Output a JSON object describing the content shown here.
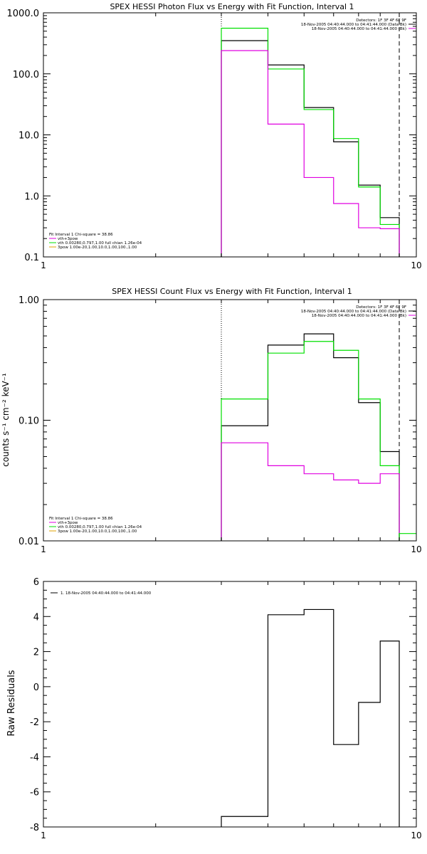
{
  "chart_data": [
    {
      "type": "line",
      "title": "SPEX HESSI Photon Flux vs Energy with Fit Function, Interval 1",
      "xlabel": "",
      "ylabel": "",
      "xscale": "log",
      "yscale": "log",
      "xlim": [
        1,
        10
      ],
      "ylim": [
        0.1,
        1000
      ],
      "x_tick_labels": [
        "1",
        "10"
      ],
      "y_tick_labels": [
        "0.1",
        "1.0",
        "10.0",
        "100.0",
        "1000.0"
      ],
      "vlines": [
        {
          "x": 3.0,
          "style": "dotted"
        },
        {
          "x": 9.0,
          "style": "dashed"
        }
      ],
      "bin_edges": [
        3.0,
        4.0,
        5.0,
        6.0,
        7.0,
        8.0,
        9.0
      ],
      "series": [
        {
          "color": "#000000",
          "values": [
            350,
            140,
            28,
            7.7,
            1.5,
            0.44
          ]
        },
        {
          "color": "#00e000",
          "values": [
            560,
            120,
            26,
            8.7,
            1.4,
            0.34
          ]
        },
        {
          "color": "#e000e0",
          "values": [
            240,
            15,
            2.0,
            0.75,
            0.3,
            0.29
          ]
        }
      ],
      "legend_topright": [
        {
          "text": "Detectors: 1F 3F 4F 6F 9F",
          "color": ""
        },
        {
          "text": "18-Nov-2005 04:40:44.000 to 04:41:44.000 (Data-Bk)",
          "color": "#000000"
        },
        {
          "text": "18-Nov-2005 04:40:44.000 to 04:41:44.000 (Bk)",
          "color": "#e000e0"
        }
      ],
      "legend_bottomleft": [
        {
          "text": "Fit Interval 1    Chi-square = 38.86",
          "color": ""
        },
        {
          "text": "vth+3pow",
          "color": "#e000e0"
        },
        {
          "text": "vth 0.00280,0.797,1.00   full chian 1.26e-04",
          "color": "#00e000"
        },
        {
          "text": "3pow 1.00e-20,1.00,10.0,1.00,100.,1.00",
          "color": "#e0a000"
        }
      ]
    },
    {
      "type": "line",
      "title": "SPEX HESSI Count Flux vs Energy with Fit Function, Interval 1",
      "xlabel": "",
      "ylabel": "counts s⁻¹ cm⁻² keV⁻¹",
      "xscale": "log",
      "yscale": "log",
      "xlim": [
        1,
        10
      ],
      "ylim": [
        0.01,
        1.0
      ],
      "x_tick_labels": [
        "1",
        "10"
      ],
      "y_tick_labels": [
        "0.01",
        "0.10",
        "1.00"
      ],
      "vlines": [
        {
          "x": 3.0,
          "style": "dotted"
        },
        {
          "x": 9.0,
          "style": "dashed"
        }
      ],
      "bin_edges": [
        3.0,
        4.0,
        5.0,
        6.0,
        7.0,
        8.0,
        9.0
      ],
      "series": [
        {
          "color": "#000000",
          "values": [
            0.09,
            0.42,
            0.52,
            0.33,
            0.14,
            0.055
          ]
        },
        {
          "color": "#00e000",
          "values": [
            0.15,
            0.36,
            0.45,
            0.38,
            0.15,
            0.042
          ]
        },
        {
          "color": "#e000e0",
          "values": [
            0.065,
            0.042,
            0.036,
            0.032,
            0.03,
            0.036
          ]
        }
      ],
      "green_tail": {
        "x_start": 9.0,
        "x_end": 10.0,
        "value": 0.0115
      },
      "legend_topright": [
        {
          "text": "Detectors: 1F 3F 4F 6F 9F",
          "color": ""
        },
        {
          "text": "18-Nov-2005 04:40:44.000 to 04:41:44.000 (Data-Bk)",
          "color": "#000000"
        },
        {
          "text": "18-Nov-2005 04:40:44.000 to 04:41:44.000 (Bk)",
          "color": "#e000e0"
        }
      ],
      "legend_bottomleft": [
        {
          "text": "Fit Interval 1    Chi-square = 38.86",
          "color": ""
        },
        {
          "text": "vth+3pow",
          "color": "#e000e0"
        },
        {
          "text": "vth 0.00280,0.797,1.00   full chian 1.26e-04",
          "color": "#00e000"
        },
        {
          "text": "3pow 1.00e-20,1.00,10.0,1.00,100.,1.00",
          "color": "#e0a000"
        }
      ]
    },
    {
      "type": "line",
      "title": "",
      "xlabel": "",
      "ylabel": "Raw Residuals",
      "xscale": "log",
      "yscale": "linear",
      "xlim": [
        1,
        10
      ],
      "ylim": [
        -8,
        6
      ],
      "x_tick_labels": [
        "1",
        "10"
      ],
      "y_tick_labels": [
        "-8",
        "-6",
        "-4",
        "-2",
        "0",
        "2",
        "4",
        "6"
      ],
      "bin_edges": [
        3.0,
        4.0,
        5.0,
        6.0,
        7.0,
        8.0,
        9.0
      ],
      "series": [
        {
          "color": "#000000",
          "values": [
            -7.4,
            4.1,
            4.4,
            -3.3,
            -0.9,
            2.6
          ]
        }
      ],
      "legend_topleft": [
        {
          "text": "1. 18-Nov-2005 04:40:44.000 to 04:41:44.000",
          "color": "#000000"
        }
      ]
    }
  ]
}
